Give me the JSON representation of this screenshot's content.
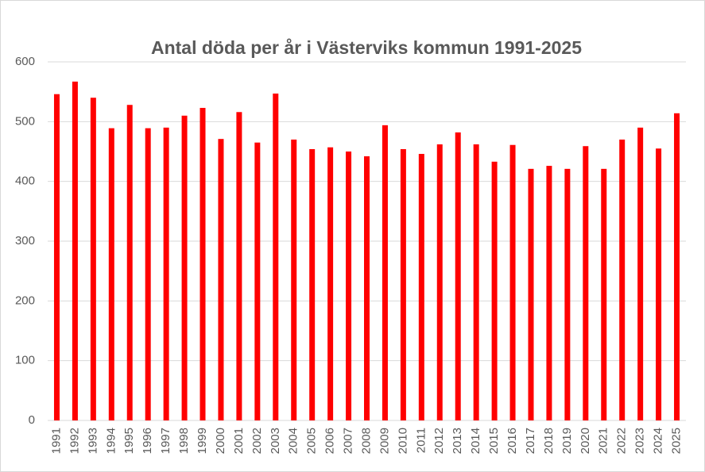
{
  "chart_data": {
    "type": "bar",
    "title": "Antal döda per år i Västerviks kommun 1991-2025",
    "categories": [
      "1991",
      "1992",
      "1993",
      "1994",
      "1995",
      "1996",
      "1997",
      "1998",
      "1999",
      "2000",
      "2001",
      "2002",
      "2003",
      "2004",
      "2005",
      "2006",
      "2007",
      "2008",
      "2009",
      "2010",
      "2011",
      "2012",
      "2013",
      "2014",
      "2015",
      "2016",
      "2017",
      "2018",
      "2019",
      "2020",
      "2021",
      "2022",
      "2023",
      "2024",
      "2025"
    ],
    "values": [
      546,
      567,
      540,
      489,
      528,
      489,
      490,
      510,
      523,
      471,
      516,
      465,
      547,
      470,
      454,
      457,
      450,
      442,
      494,
      454,
      446,
      462,
      482,
      462,
      433,
      461,
      421,
      426,
      421,
      459,
      421,
      470,
      490,
      455,
      514
    ],
    "color": "#ff0000",
    "ylim": [
      0,
      600
    ],
    "yticks": [
      0,
      100,
      200,
      300,
      400,
      500,
      600
    ],
    "grid": true
  }
}
